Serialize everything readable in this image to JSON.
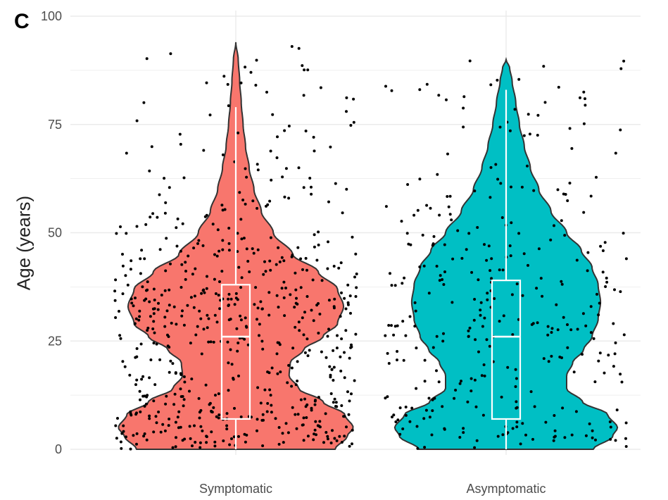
{
  "panel_label": "C",
  "chart_data": {
    "type": "violin",
    "categories": [
      "Symptomatic",
      "Asymptomatic"
    ],
    "colors": [
      "#F8766D",
      "#00BFC4"
    ],
    "xlabel": "",
    "ylabel": "Age (years)",
    "ylim": [
      0,
      100
    ],
    "yticks": [
      0,
      25,
      50,
      75,
      100
    ],
    "grid": true,
    "legend": "none",
    "series": [
      {
        "name": "Symptomatic",
        "max": 94,
        "box": {
          "q1": 7,
          "median": 26,
          "q3": 38,
          "whisker_low": 0,
          "whisker_high": 79
        },
        "density": [
          [
            0,
            0.82
          ],
          [
            3,
            0.92
          ],
          [
            5,
            0.97
          ],
          [
            8,
            0.9
          ],
          [
            11,
            0.72
          ],
          [
            14,
            0.52
          ],
          [
            17,
            0.44
          ],
          [
            20,
            0.45
          ],
          [
            23,
            0.56
          ],
          [
            26,
            0.72
          ],
          [
            29,
            0.84
          ],
          [
            33,
            0.89
          ],
          [
            37,
            0.84
          ],
          [
            41,
            0.68
          ],
          [
            45,
            0.47
          ],
          [
            50,
            0.31
          ],
          [
            55,
            0.21
          ],
          [
            60,
            0.15
          ],
          [
            65,
            0.11
          ],
          [
            70,
            0.08
          ],
          [
            75,
            0.06
          ],
          [
            80,
            0.045
          ],
          [
            85,
            0.032
          ],
          [
            90,
            0.02
          ],
          [
            94,
            0.0
          ]
        ]
      },
      {
        "name": "Asymptomatic",
        "max": 90,
        "box": {
          "q1": 7,
          "median": 26,
          "q3": 39,
          "whisker_low": 0,
          "whisker_high": 83
        },
        "density": [
          [
            0,
            0.72
          ],
          [
            3,
            0.88
          ],
          [
            5,
            0.92
          ],
          [
            8,
            0.84
          ],
          [
            11,
            0.63
          ],
          [
            14,
            0.5
          ],
          [
            17,
            0.5
          ],
          [
            20,
            0.55
          ],
          [
            23,
            0.64
          ],
          [
            26,
            0.71
          ],
          [
            30,
            0.76
          ],
          [
            34,
            0.78
          ],
          [
            38,
            0.76
          ],
          [
            42,
            0.71
          ],
          [
            46,
            0.62
          ],
          [
            50,
            0.5
          ],
          [
            55,
            0.37
          ],
          [
            60,
            0.27
          ],
          [
            65,
            0.2
          ],
          [
            70,
            0.15
          ],
          [
            75,
            0.11
          ],
          [
            80,
            0.08
          ],
          [
            85,
            0.05
          ],
          [
            88,
            0.03
          ],
          [
            90,
            0.0
          ]
        ]
      }
    ]
  }
}
